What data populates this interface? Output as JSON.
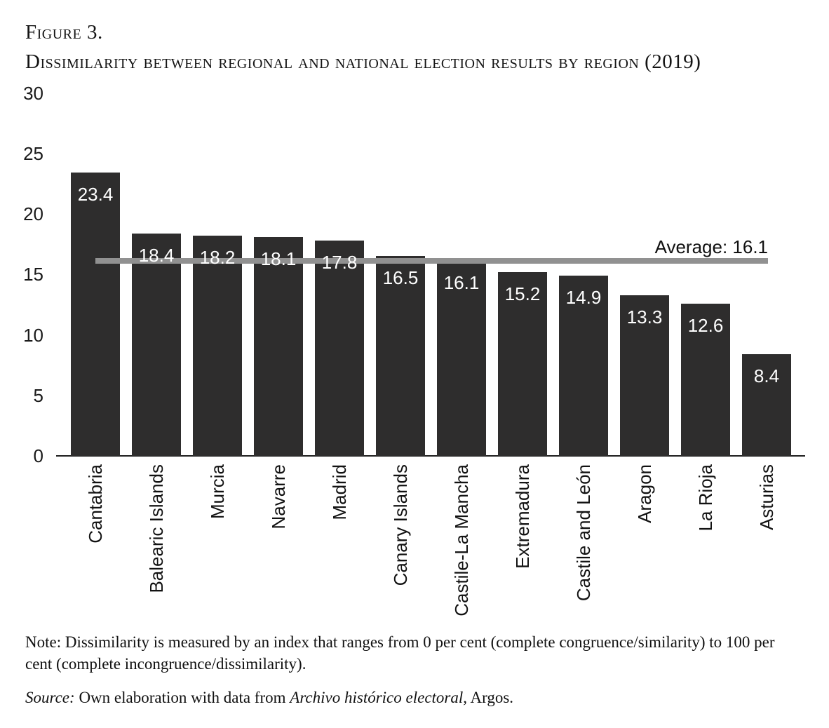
{
  "figure": {
    "label": "Figure 3.",
    "title": "Dissimilarity between regional and national election results by region (2019)"
  },
  "chart_data": {
    "type": "bar",
    "title": "Dissimilarity between regional and national election results by region (2019)",
    "categories": [
      "Cantabria",
      "Balearic Islands",
      "Murcia",
      "Navarre",
      "Madrid",
      "Canary Islands",
      "Castile-La Mancha",
      "Extremadura",
      "Castile and León",
      "Aragon",
      "La Rioja",
      "Asturias"
    ],
    "values": [
      23.4,
      18.4,
      18.2,
      18.1,
      17.8,
      16.5,
      16.1,
      15.2,
      14.9,
      13.3,
      12.6,
      8.4
    ],
    "xlabel": "",
    "ylabel": "",
    "ylim": [
      0,
      30
    ],
    "yticks": [
      0,
      5,
      10,
      15,
      20,
      25,
      30
    ],
    "grid": false,
    "legend": "none",
    "bar_color": "#2e2d2d",
    "value_label_color": "#ffffff",
    "average": {
      "value": 16.1,
      "label": "Average: 16.1",
      "line_color": "#919191"
    }
  },
  "note": {
    "line1": "Note: Dissimilarity is measured by an index that ranges from 0 per cent (complete congruence/similarity) to 100 per",
    "line2": "cent (complete incongruence/dissimilarity)."
  },
  "source": {
    "label_italic": "Source:",
    "text_mid": " Own elaboration with data from ",
    "work_italic": "Archivo histórico electoral",
    "text_end": ", Argos."
  }
}
